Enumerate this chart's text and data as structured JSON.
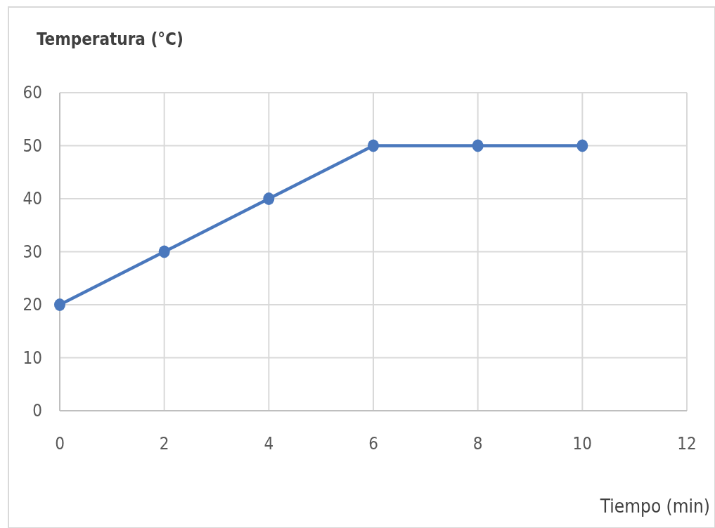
{
  "chart_data": {
    "type": "line",
    "xlabel": "Tiempo (min)",
    "ylabel": "Temperatura (°C)",
    "x": [
      0,
      2,
      4,
      6,
      8,
      10
    ],
    "series": [
      {
        "color": "#4a78bd",
        "values": [
          20,
          30,
          40,
          50,
          50,
          50
        ]
      }
    ],
    "xlim": [
      0,
      12
    ],
    "xticks": [
      0,
      2,
      4,
      6,
      8,
      10,
      12
    ],
    "ylim": [
      0,
      60
    ],
    "yticks": [
      0,
      10,
      20,
      30,
      40,
      50,
      60
    ],
    "grid": true,
    "marker": "circle",
    "line_style": "solid"
  }
}
